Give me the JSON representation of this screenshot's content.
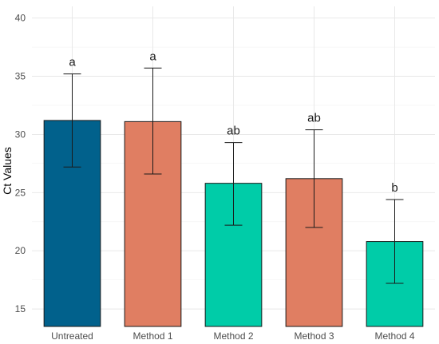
{
  "chart_data": {
    "type": "bar",
    "ylabel": "Ct Values",
    "xlabel": "",
    "ylim": [
      13.5,
      41
    ],
    "yticks": [
      15,
      20,
      25,
      30,
      35,
      40
    ],
    "grid": true,
    "categories": [
      "Untreated",
      "Method 1",
      "Method 2",
      "Method 3",
      "Method 4"
    ],
    "values": [
      31.2,
      31.1,
      25.8,
      26.2,
      20.8
    ],
    "error_low": [
      27.2,
      26.6,
      22.2,
      22.0,
      17.2
    ],
    "error_high": [
      35.2,
      35.7,
      29.3,
      30.4,
      24.4
    ],
    "significance_labels": [
      "a",
      "a",
      "ab",
      "ab",
      "b"
    ],
    "bar_colors": [
      "#01618c",
      "#e07e62",
      "#00cca8",
      "#e07e62",
      "#00cca8"
    ]
  }
}
